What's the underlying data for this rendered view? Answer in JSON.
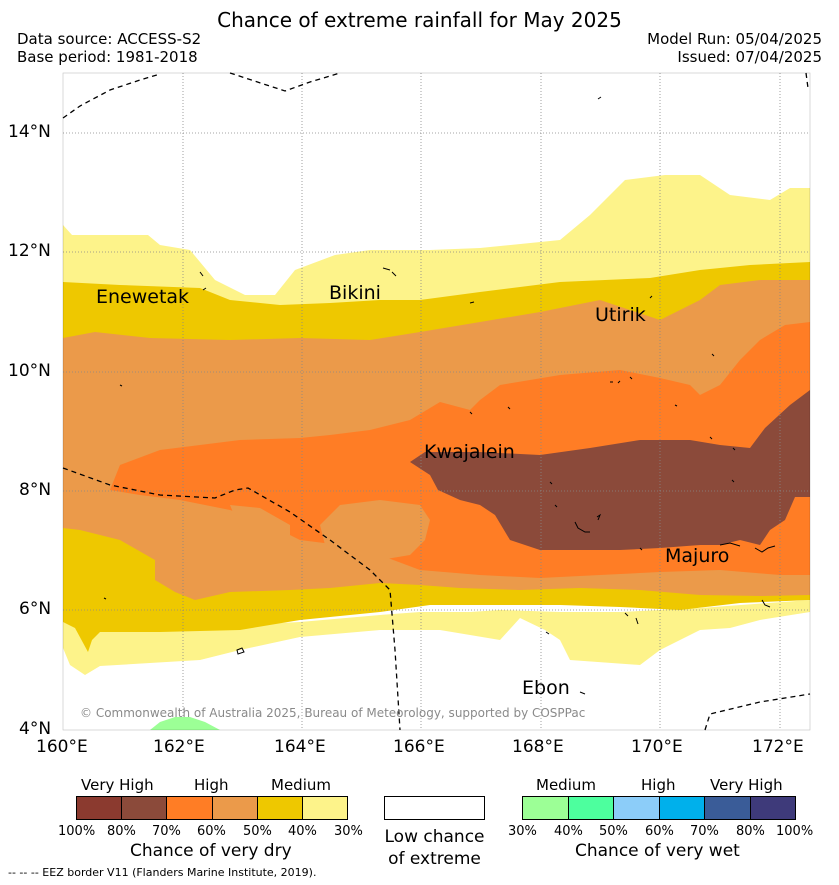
{
  "title": "Chance of extreme rainfall for May 2025",
  "header": {
    "data_source": "Data source: ACCESS-S2",
    "base_period": "Base period: 1981-2018",
    "model_run": "Model Run: 05/04/2025",
    "issued": "Issued: 07/04/2025"
  },
  "axes": {
    "lat_ticks": [
      "14°N",
      "12°N",
      "10°N",
      "8°N",
      "6°N",
      "4°N"
    ],
    "lon_ticks": [
      "160°E",
      "162°E",
      "164°E",
      "166°E",
      "168°E",
      "170°E",
      "172°E"
    ]
  },
  "places": [
    "Enewetak",
    "Bikini",
    "Utirik",
    "Kwajalein",
    "Majuro",
    "Ebon"
  ],
  "copyright": "© Commonwealth of Australia 2025, Bureau of Meteorology, supported by COSPPac",
  "dry_legend": {
    "category_labels": [
      "Very High",
      "High",
      "Medium"
    ],
    "colors": [
      "#8b3a2f",
      "#8b4a3a",
      "#ff7d25",
      "#eb9a4a",
      "#eec800",
      "#fdf38a"
    ],
    "tick_labels": [
      "100%",
      "80%",
      "70%",
      "60%",
      "50%",
      "40%",
      "30%"
    ],
    "title": "Chance of very dry"
  },
  "low_chance_legend": {
    "color": "#ffffff",
    "title_line1": "Low chance",
    "title_line2": "of extreme"
  },
  "wet_legend": {
    "category_labels": [
      "Medium",
      "High",
      "Very High"
    ],
    "colors": [
      "#9cff96",
      "#4dff9e",
      "#8ccdf9",
      "#00b0eb",
      "#3a5c98",
      "#3e3a7a"
    ],
    "tick_labels": [
      "30%",
      "40%",
      "50%",
      "60%",
      "70%",
      "80%",
      "100%"
    ],
    "title": "Chance of very wet"
  },
  "footnote": "--  --  -- EEZ border V11 (Flanders Marine Institute, 2019)."
}
